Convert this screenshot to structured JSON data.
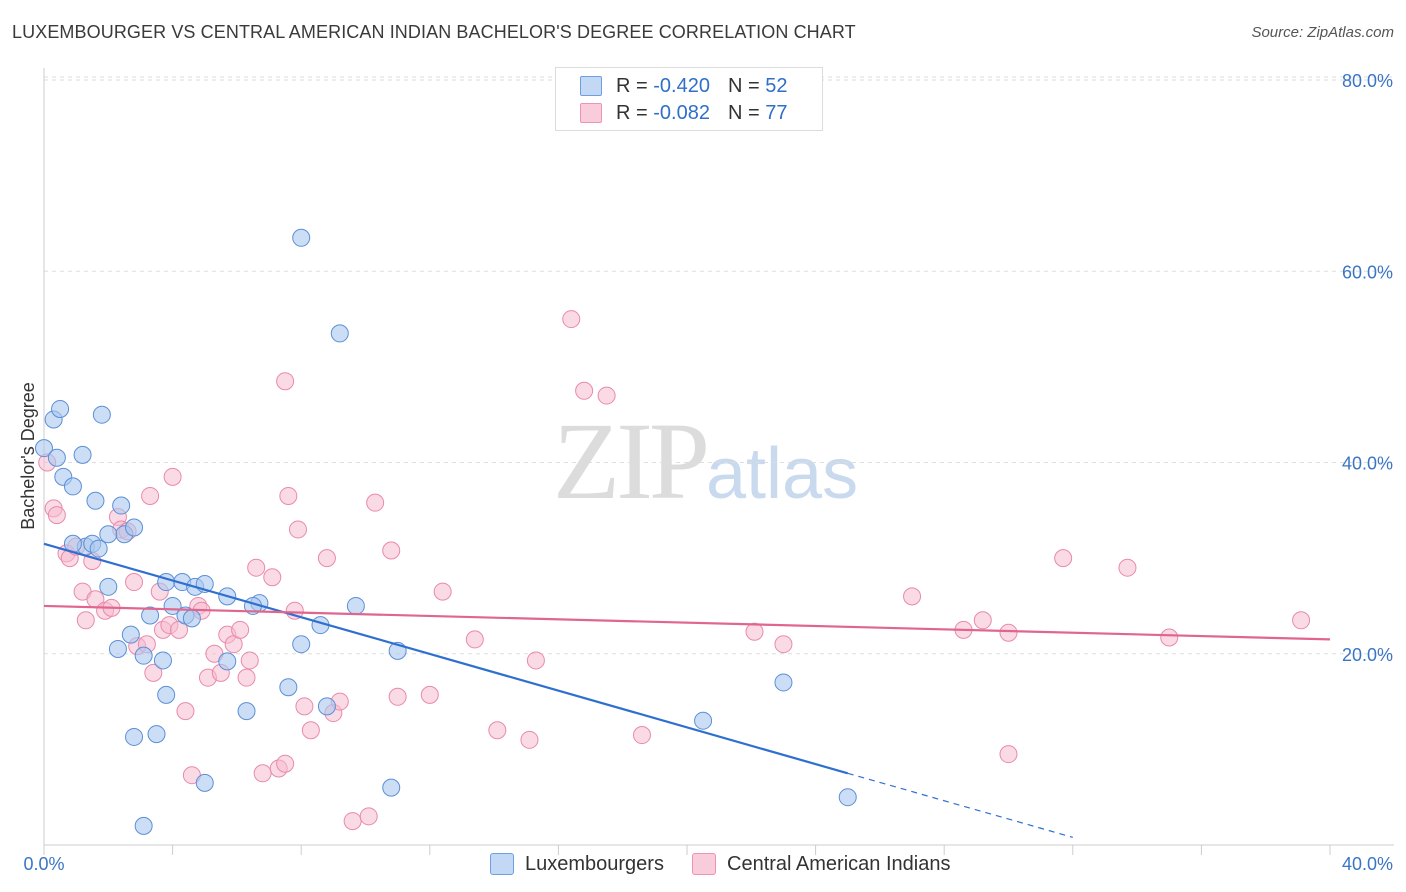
{
  "title": "LUXEMBOURGER VS CENTRAL AMERICAN INDIAN BACHELOR'S DEGREE CORRELATION CHART",
  "source": "Source: ZipAtlas.com",
  "watermark": {
    "zip": "ZIP",
    "atlas": "atlas"
  },
  "legend": {
    "rows": [
      {
        "r_label": "R = ",
        "r_value": "-0.420",
        "n_label": "N = ",
        "n_value": "52"
      },
      {
        "r_label": "R = ",
        "r_value": "-0.082",
        "n_label": "N = ",
        "n_value": "77"
      }
    ]
  },
  "bottom_legend": {
    "series1": "Luxembourgers",
    "series2": "Central American Indians"
  },
  "colors": {
    "blue_fill": "#aac8ef",
    "blue_stroke": "#5b8fd6",
    "blue_line": "#2f6fd0",
    "pink_fill": "#f6bcd0",
    "pink_stroke": "#e98aab",
    "pink_line": "#e0658f",
    "tick_text": "#3a75c4",
    "grid": "#dddddd"
  },
  "chart_data": {
    "type": "scatter",
    "title": "LUXEMBOURGER VS CENTRAL AMERICAN INDIAN BACHELOR'S DEGREE CORRELATION CHART",
    "xlabel": "",
    "ylabel": "Bachelor's Degree",
    "xlim": [
      0,
      40
    ],
    "ylim": [
      0,
      80
    ],
    "x_tick_labels": [
      "0.0%",
      "40.0%"
    ],
    "y_tick_labels": [
      "20.0%",
      "40.0%",
      "60.0%",
      "80.0%"
    ],
    "y_ticks": [
      20,
      40,
      60,
      80
    ],
    "grid": true,
    "series": [
      {
        "name": "Luxembourgers",
        "trend": {
          "x": [
            0,
            25
          ],
          "y": [
            31.5,
            7.5
          ],
          "dashed_to": {
            "x": 32,
            "y": 0.8
          }
        },
        "points": [
          [
            0.0,
            41.5
          ],
          [
            0.3,
            44.5
          ],
          [
            0.5,
            45.6
          ],
          [
            0.4,
            40.5
          ],
          [
            0.6,
            38.5
          ],
          [
            0.9,
            37.5
          ],
          [
            1.2,
            40.8
          ],
          [
            1.8,
            45.0
          ],
          [
            1.6,
            36.0
          ],
          [
            2.4,
            35.5
          ],
          [
            2.5,
            32.5
          ],
          [
            2.8,
            33.2
          ],
          [
            1.3,
            31.2
          ],
          [
            0.9,
            31.5
          ],
          [
            1.5,
            31.5
          ],
          [
            1.7,
            31.0
          ],
          [
            2.0,
            32.5
          ],
          [
            2.0,
            27.0
          ],
          [
            2.3,
            20.5
          ],
          [
            2.7,
            22.0
          ],
          [
            3.1,
            19.8
          ],
          [
            3.3,
            24.0
          ],
          [
            3.8,
            27.5
          ],
          [
            3.7,
            19.3
          ],
          [
            4.0,
            25.0
          ],
          [
            4.3,
            27.5
          ],
          [
            4.4,
            24.0
          ],
          [
            4.6,
            23.7
          ],
          [
            4.7,
            27.0
          ],
          [
            5.0,
            27.3
          ],
          [
            5.7,
            26.0
          ],
          [
            6.7,
            25.3
          ],
          [
            6.5,
            25.0
          ],
          [
            5.7,
            19.2
          ],
          [
            6.3,
            14.0
          ],
          [
            7.6,
            16.5
          ],
          [
            8.0,
            21.0
          ],
          [
            8.6,
            23.0
          ],
          [
            8.8,
            14.5
          ],
          [
            9.7,
            25.0
          ],
          [
            11.0,
            20.3
          ],
          [
            3.8,
            15.7
          ],
          [
            2.8,
            11.3
          ],
          [
            3.5,
            11.6
          ],
          [
            5.0,
            6.5
          ],
          [
            3.1,
            2.0
          ],
          [
            10.8,
            6.0
          ],
          [
            8.0,
            63.5
          ],
          [
            9.2,
            53.5
          ],
          [
            20.5,
            13.0
          ],
          [
            23.0,
            17.0
          ],
          [
            25.0,
            5.0
          ]
        ]
      },
      {
        "name": "Central American Indians",
        "trend": {
          "x": [
            0,
            40
          ],
          "y": [
            25.0,
            21.5
          ]
        },
        "points": [
          [
            0.1,
            40.0
          ],
          [
            0.3,
            35.2
          ],
          [
            0.4,
            34.5
          ],
          [
            0.7,
            30.5
          ],
          [
            0.8,
            30.0
          ],
          [
            1.0,
            31.2
          ],
          [
            1.2,
            26.5
          ],
          [
            1.3,
            23.5
          ],
          [
            1.5,
            29.7
          ],
          [
            1.6,
            25.7
          ],
          [
            1.9,
            24.5
          ],
          [
            2.1,
            24.8
          ],
          [
            2.3,
            34.3
          ],
          [
            2.4,
            33.0
          ],
          [
            2.6,
            32.8
          ],
          [
            2.8,
            27.5
          ],
          [
            2.9,
            20.8
          ],
          [
            3.2,
            21.0
          ],
          [
            3.3,
            36.5
          ],
          [
            3.4,
            18.0
          ],
          [
            3.6,
            26.5
          ],
          [
            3.7,
            22.5
          ],
          [
            3.9,
            23.0
          ],
          [
            4.0,
            38.5
          ],
          [
            4.2,
            22.5
          ],
          [
            4.4,
            14.0
          ],
          [
            4.8,
            25.0
          ],
          [
            4.9,
            24.5
          ],
          [
            5.1,
            17.5
          ],
          [
            5.3,
            20.0
          ],
          [
            5.5,
            18.0
          ],
          [
            5.7,
            22.0
          ],
          [
            5.9,
            21.0
          ],
          [
            6.1,
            22.5
          ],
          [
            6.3,
            17.5
          ],
          [
            6.4,
            19.3
          ],
          [
            6.6,
            29.0
          ],
          [
            6.8,
            7.5
          ],
          [
            7.1,
            28.0
          ],
          [
            7.3,
            8.0
          ],
          [
            7.5,
            48.5
          ],
          [
            7.6,
            36.5
          ],
          [
            7.8,
            24.5
          ],
          [
            7.9,
            33.0
          ],
          [
            8.1,
            14.5
          ],
          [
            8.3,
            12.0
          ],
          [
            8.8,
            30.0
          ],
          [
            9.0,
            13.8
          ],
          [
            9.2,
            15.0
          ],
          [
            9.6,
            2.5
          ],
          [
            10.1,
            3.0
          ],
          [
            10.3,
            35.8
          ],
          [
            10.8,
            30.8
          ],
          [
            11.0,
            15.5
          ],
          [
            12.0,
            15.7
          ],
          [
            12.4,
            26.5
          ],
          [
            13.4,
            21.5
          ],
          [
            14.1,
            12.0
          ],
          [
            15.1,
            11.0
          ],
          [
            15.3,
            19.3
          ],
          [
            16.4,
            55.0
          ],
          [
            16.8,
            47.5
          ],
          [
            17.5,
            47.0
          ],
          [
            18.6,
            11.5
          ],
          [
            22.1,
            22.3
          ],
          [
            23.0,
            21.0
          ],
          [
            27.0,
            26.0
          ],
          [
            28.6,
            22.5
          ],
          [
            29.2,
            23.5
          ],
          [
            30.0,
            22.2
          ],
          [
            30.0,
            9.5
          ],
          [
            31.7,
            30.0
          ],
          [
            33.7,
            29.0
          ],
          [
            35.0,
            21.7
          ],
          [
            39.1,
            23.5
          ],
          [
            4.6,
            7.3
          ],
          [
            7.5,
            8.5
          ]
        ]
      }
    ]
  }
}
